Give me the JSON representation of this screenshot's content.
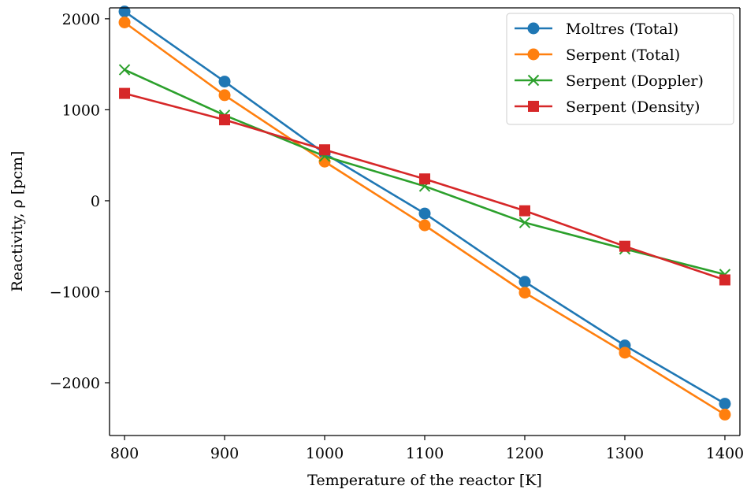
{
  "chart_data": {
    "type": "line",
    "title": "",
    "xlabel": "Temperature of the reactor [K]",
    "ylabel": "Reactivity, ρ [pcm]",
    "x": [
      800,
      900,
      1000,
      1100,
      1200,
      1300,
      1400
    ],
    "xlim": [
      785,
      1415
    ],
    "ylim": [
      -2580,
      2120
    ],
    "x_ticks": [
      800,
      900,
      1000,
      1100,
      1200,
      1300,
      1400
    ],
    "y_ticks": [
      2000,
      1000,
      0,
      -1000,
      -2000
    ],
    "y_tick_labels": [
      "2000",
      "1000",
      "0",
      "−1000",
      "−2000"
    ],
    "grid": false,
    "legend_position": "top-right",
    "series": [
      {
        "name": "Moltres (Total)",
        "color": "#1f77b4",
        "marker": "circle",
        "values": [
          2080,
          1310,
          520,
          -140,
          -890,
          -1590,
          -2230
        ]
      },
      {
        "name": "Serpent (Total)",
        "color": "#ff7f0e",
        "marker": "circle",
        "values": [
          1960,
          1160,
          430,
          -270,
          -1010,
          -1670,
          -2350
        ]
      },
      {
        "name": "Serpent (Doppler)",
        "color": "#2ca02c",
        "marker": "x",
        "values": [
          1440,
          940,
          490,
          160,
          -240,
          -530,
          -810
        ]
      },
      {
        "name": "Serpent (Density)",
        "color": "#d62728",
        "marker": "square",
        "values": [
          1180,
          890,
          560,
          240,
          -110,
          -500,
          -870
        ]
      }
    ]
  }
}
